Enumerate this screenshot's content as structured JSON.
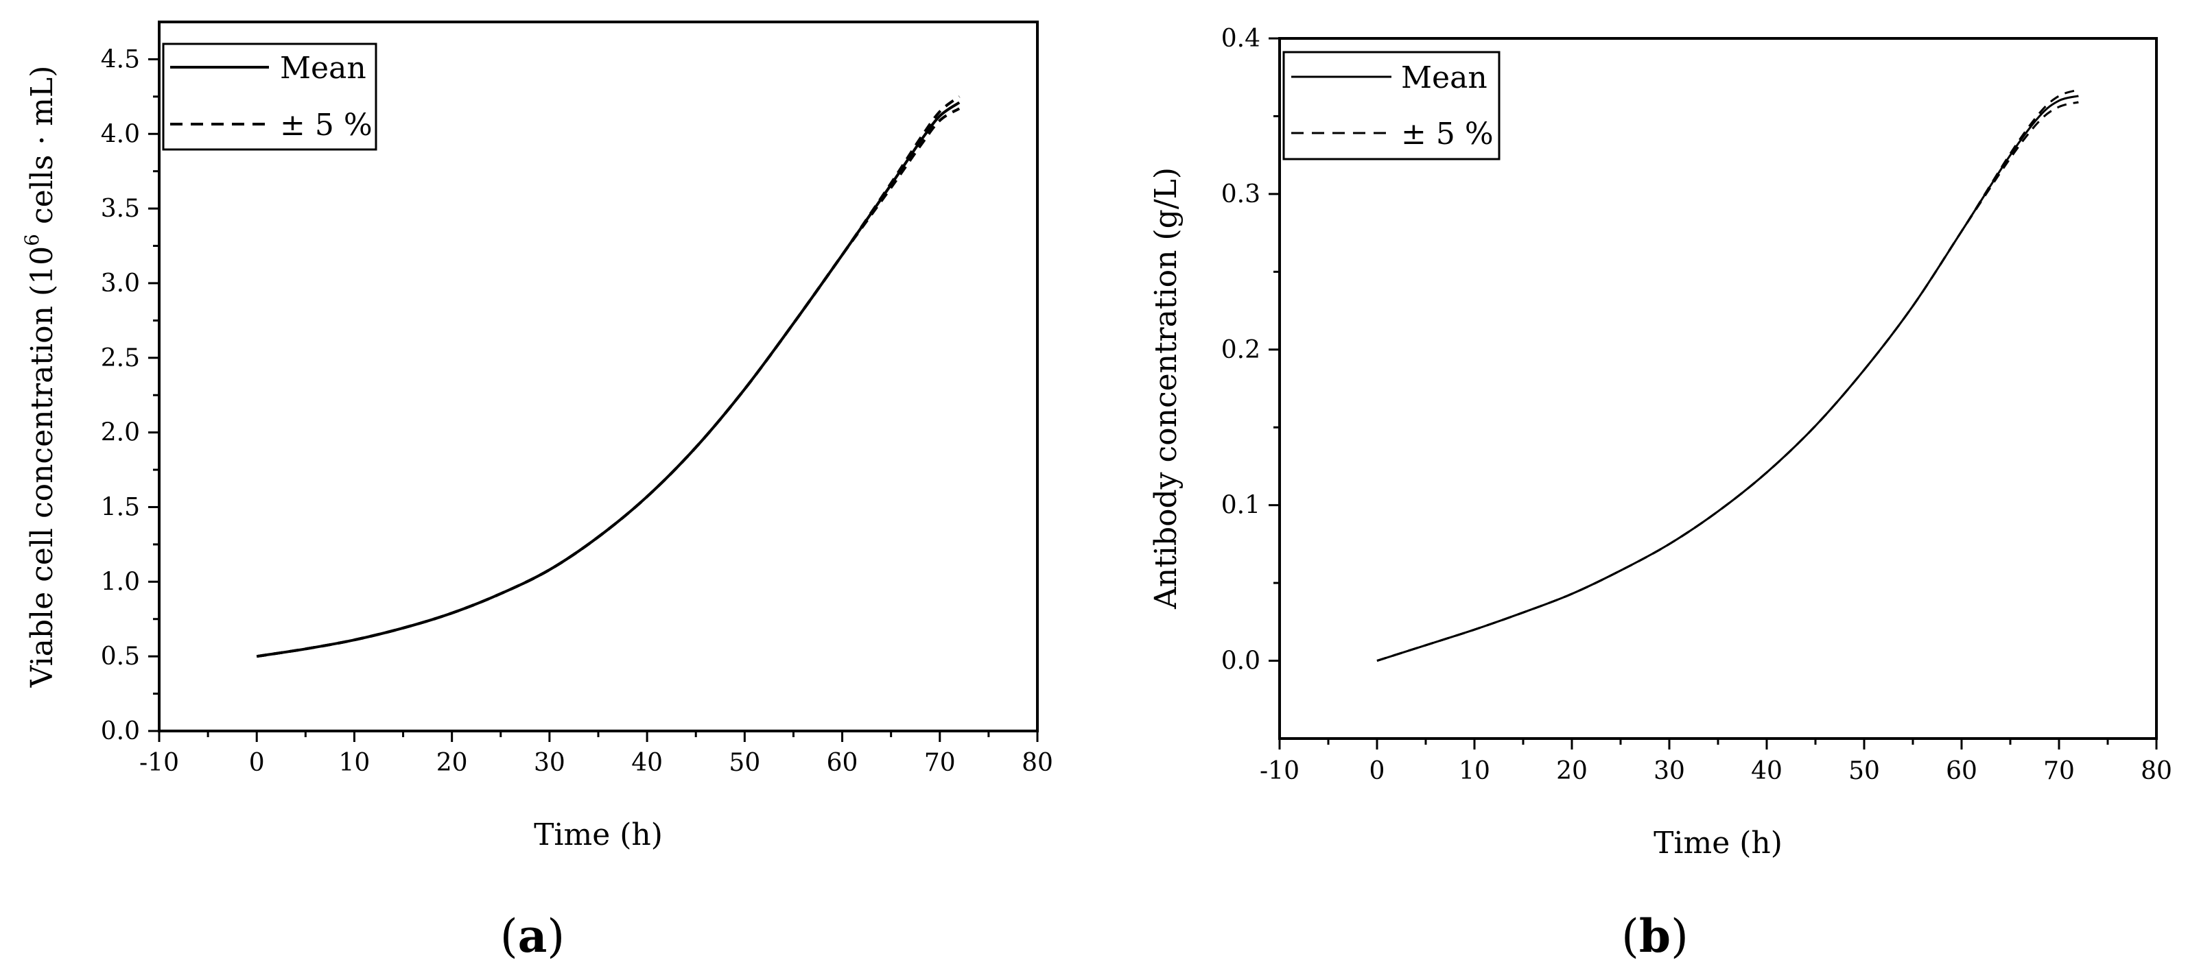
{
  "chart_data": [
    {
      "type": "line",
      "panel_label": "a",
      "title": "",
      "xlabel": "Time (h)",
      "ylabel": "Viable cell concentration (10⁶ cells · mL)",
      "xlim": [
        -10,
        80
      ],
      "ylim": [
        0,
        4.75
      ],
      "x_ticks": [
        -10,
        0,
        10,
        20,
        30,
        40,
        50,
        60,
        70,
        80
      ],
      "x_tick_labels": [
        "-10",
        "0",
        "10",
        "20",
        "30",
        "40",
        "50",
        "60",
        "70",
        "80"
      ],
      "y_ticks": [
        0,
        0.5,
        1,
        1.5,
        2,
        2.5,
        3,
        3.5,
        4,
        4.5
      ],
      "y_tick_labels": [
        "0.0",
        "0.5",
        "1.0",
        "1.5",
        "2.0",
        "2.5",
        "3.0",
        "3.5",
        "4.0",
        "4.5"
      ],
      "grid": false,
      "legend": {
        "placement": "top-left",
        "entries": [
          "Mean",
          "± 5 %"
        ]
      },
      "series": [
        {
          "name": "Mean",
          "style": "solid",
          "x": [
            0,
            5,
            10,
            15,
            20,
            25,
            30,
            35,
            40,
            45,
            50,
            55,
            60,
            65,
            68,
            70,
            72
          ],
          "y": [
            0.5,
            0.55,
            0.61,
            0.69,
            0.79,
            0.92,
            1.08,
            1.3,
            1.57,
            1.9,
            2.29,
            2.73,
            3.19,
            3.66,
            3.95,
            4.12,
            4.21
          ]
        },
        {
          "name": "+5 %",
          "style": "dashed",
          "x": [
            0,
            5,
            10,
            15,
            20,
            25,
            30,
            35,
            40,
            45,
            50,
            55,
            60,
            65,
            68,
            70,
            72
          ],
          "y": [
            0.5,
            0.55,
            0.61,
            0.69,
            0.79,
            0.92,
            1.08,
            1.3,
            1.57,
            1.9,
            2.29,
            2.73,
            3.19,
            3.67,
            3.97,
            4.15,
            4.25
          ]
        },
        {
          "name": "-5 %",
          "style": "dashed",
          "x": [
            0,
            5,
            10,
            15,
            20,
            25,
            30,
            35,
            40,
            45,
            50,
            55,
            60,
            65,
            68,
            70,
            72
          ],
          "y": [
            0.5,
            0.55,
            0.61,
            0.69,
            0.79,
            0.92,
            1.08,
            1.3,
            1.57,
            1.9,
            2.29,
            2.73,
            3.19,
            3.64,
            3.92,
            4.09,
            4.17
          ]
        }
      ]
    },
    {
      "type": "line",
      "panel_label": "b",
      "title": "",
      "xlabel": "Time (h)",
      "ylabel": "Antibody concentration (g/L)",
      "xlim": [
        -10,
        80
      ],
      "ylim": [
        -0.05,
        0.4
      ],
      "x_ticks": [
        -10,
        0,
        10,
        20,
        30,
        40,
        50,
        60,
        70,
        80
      ],
      "x_tick_labels": [
        "-10",
        "0",
        "10",
        "20",
        "30",
        "40",
        "50",
        "60",
        "70",
        "80"
      ],
      "y_ticks": [
        0,
        0.1,
        0.2,
        0.3,
        0.4
      ],
      "y_tick_labels": [
        "0.0",
        "0.1",
        "0.2",
        "0.3",
        "0.4"
      ],
      "grid": false,
      "legend": {
        "placement": "top-left",
        "entries": [
          "Mean",
          "± 5 %"
        ]
      },
      "series": [
        {
          "name": "Mean",
          "style": "solid",
          "x": [
            0,
            5,
            10,
            15,
            20,
            25,
            30,
            35,
            40,
            45,
            50,
            55,
            60,
            65,
            68,
            70,
            72
          ],
          "y": [
            0.0,
            0.01,
            0.02,
            0.031,
            0.043,
            0.058,
            0.075,
            0.096,
            0.121,
            0.151,
            0.187,
            0.228,
            0.276,
            0.325,
            0.35,
            0.36,
            0.363
          ]
        },
        {
          "name": "+5 %",
          "style": "dashed",
          "x": [
            0,
            5,
            10,
            15,
            20,
            25,
            30,
            35,
            40,
            45,
            50,
            55,
            60,
            65,
            68,
            70,
            72
          ],
          "y": [
            0.0,
            0.01,
            0.02,
            0.031,
            0.043,
            0.058,
            0.075,
            0.096,
            0.121,
            0.151,
            0.187,
            0.228,
            0.276,
            0.326,
            0.352,
            0.363,
            0.367
          ]
        },
        {
          "name": "-5 %",
          "style": "dashed",
          "x": [
            0,
            5,
            10,
            15,
            20,
            25,
            30,
            35,
            40,
            45,
            50,
            55,
            60,
            65,
            68,
            70,
            72
          ],
          "y": [
            0.0,
            0.01,
            0.02,
            0.031,
            0.043,
            0.058,
            0.075,
            0.096,
            0.121,
            0.151,
            0.187,
            0.228,
            0.276,
            0.323,
            0.347,
            0.356,
            0.359
          ]
        }
      ]
    }
  ],
  "colors": {
    "ink": "#000000",
    "background": "#ffffff"
  }
}
